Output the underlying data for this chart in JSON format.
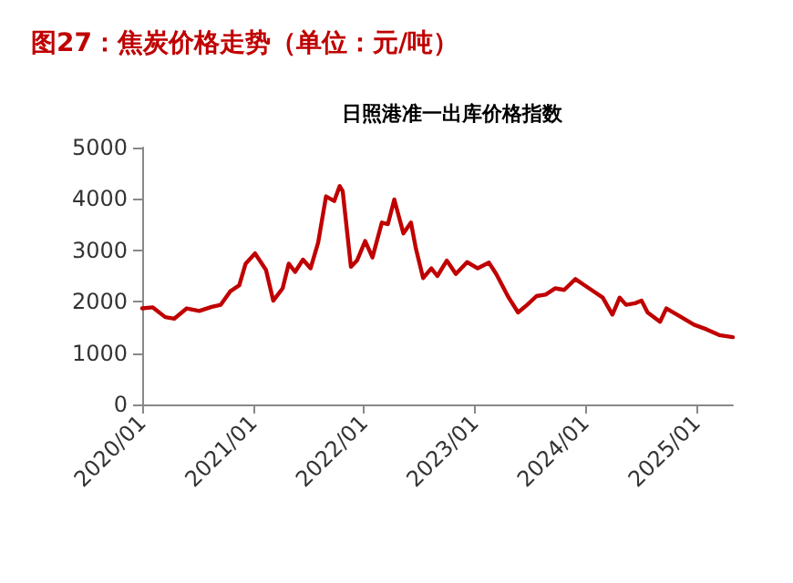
{
  "chart_data": {
    "type": "line",
    "title": "图27：焦炭价格走势（单位：元/吨）",
    "subtitle": "日照港准一出库价格指数",
    "x": [
      "2020-01-01",
      "2020-02-05",
      "2020-03-17",
      "2020-04-16",
      "2020-05-27",
      "2020-07-07",
      "2020-08-17",
      "2020-09-16",
      "2020-10-17",
      "2020-11-16",
      "2020-12-07",
      "2021-01-07",
      "2021-02-12",
      "2021-03-08",
      "2021-04-08",
      "2021-04-28",
      "2021-05-19",
      "2021-06-14",
      "2021-07-09",
      "2021-08-03",
      "2021-08-29",
      "2021-09-25",
      "2021-10-13",
      "2021-10-23",
      "2021-11-19",
      "2021-12-09",
      "2022-01-05",
      "2022-01-29",
      "2022-03-01",
      "2022-03-21",
      "2022-04-11",
      "2022-05-11",
      "2022-06-05",
      "2022-06-21",
      "2022-07-15",
      "2022-08-11",
      "2022-08-31",
      "2022-10-01",
      "2022-10-31",
      "2022-12-07",
      "2023-01-11",
      "2023-02-17",
      "2023-03-13",
      "2023-04-23",
      "2023-05-24",
      "2023-06-23",
      "2023-07-24",
      "2023-08-23",
      "2023-09-23",
      "2023-10-23",
      "2023-11-29",
      "2024-01-03",
      "2024-02-02",
      "2024-02-27",
      "2024-03-30",
      "2024-04-23",
      "2024-05-14",
      "2024-06-13",
      "2024-07-04",
      "2024-07-24",
      "2024-09-03",
      "2024-09-24",
      "2024-11-03",
      "2024-12-25",
      "2025-02-04",
      "2025-03-17",
      "2025-05-01"
    ],
    "series": [
      {
        "color": "#c00000",
        "values": [
          1870,
          1890,
          1700,
          1670,
          1870,
          1820,
          1900,
          1940,
          2200,
          2320,
          2740,
          2940,
          2620,
          2020,
          2260,
          2740,
          2580,
          2820,
          2650,
          3150,
          4050,
          3960,
          4250,
          4150,
          2680,
          2800,
          3180,
          2860,
          3540,
          3510,
          3990,
          3330,
          3540,
          3040,
          2460,
          2650,
          2500,
          2800,
          2540,
          2770,
          2650,
          2760,
          2540,
          2080,
          1790,
          1940,
          2110,
          2140,
          2260,
          2230,
          2440,
          2300,
          2180,
          2080,
          1750,
          2080,
          1940,
          1970,
          2020,
          1790,
          1610,
          1870,
          1730,
          1550,
          1460,
          1350,
          1310
        ]
      }
    ],
    "xlim": [
      "2020-01-01",
      "2025-05-01"
    ],
    "xticks": [
      {
        "value": "2020-01-01",
        "label": "2020/01"
      },
      {
        "value": "2021-01-01",
        "label": "2021/01"
      },
      {
        "value": "2022-01-01",
        "label": "2022/01"
      },
      {
        "value": "2023-01-01",
        "label": "2023/01"
      },
      {
        "value": "2024-01-01",
        "label": "2024/01"
      },
      {
        "value": "2025-01-01",
        "label": "2025/01"
      }
    ],
    "ylim": [
      0,
      5000
    ],
    "yticks": [
      0,
      1000,
      2000,
      3000,
      4000,
      5000
    ],
    "grid": false,
    "marker": "none",
    "line_style": "solid"
  }
}
